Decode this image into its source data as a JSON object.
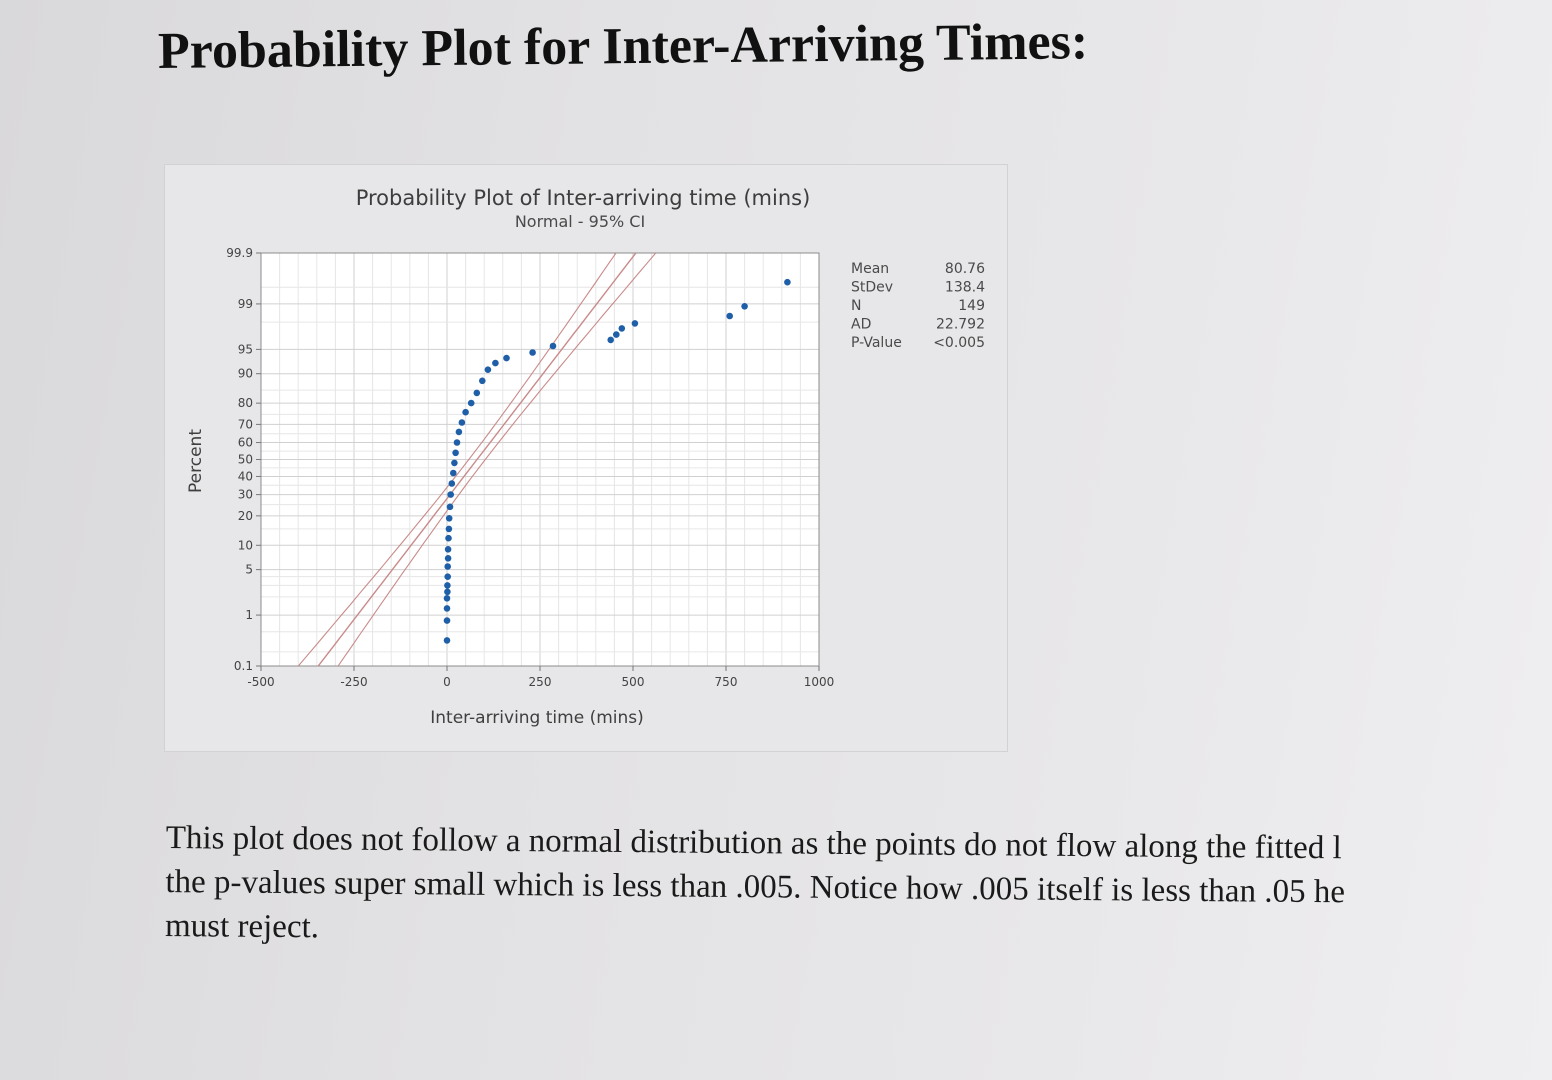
{
  "page": {
    "heading": "Probability Plot for Inter-Arriving Times:",
    "caption_lines": [
      "This plot does not follow a normal distribution as the points do not flow along the fitted l",
      "the p-values super small which is less than .005. Notice how .005 itself is less than .05 he",
      "must reject."
    ]
  },
  "stats": [
    {
      "label": "Mean",
      "value": "80.76"
    },
    {
      "label": "StDev",
      "value": "138.4"
    },
    {
      "label": "N",
      "value": "149"
    },
    {
      "label": "AD",
      "value": "22.792"
    },
    {
      "label": "P-Value",
      "value": "<0.005"
    }
  ],
  "colors": {
    "points": "#1f5fa8",
    "fit_line": "#c98a8a",
    "grid": "#dcdcdc"
  },
  "chart_data": {
    "type": "scatter",
    "title": "Probability Plot of Inter-arriving time (mins)",
    "subtitle": "Normal - 95% CI",
    "xlabel": "Inter-arriving time (mins)",
    "ylabel": "Percent",
    "xlim": [
      -500,
      1000
    ],
    "x_ticks": [
      -500,
      -250,
      0,
      250,
      500,
      750,
      1000
    ],
    "y_scale": "normal-probability",
    "y_ticks": [
      0.1,
      1,
      5,
      10,
      20,
      30,
      40,
      50,
      60,
      70,
      80,
      90,
      95,
      99,
      99.9
    ],
    "y_tick_labels": [
      "0.1",
      "1",
      "5",
      "10",
      "20",
      "30",
      "40",
      "50",
      "60",
      "70",
      "80",
      "90",
      "95",
      "99",
      "99.9"
    ],
    "fit": {
      "mean": 80.76,
      "stdev": 138.4,
      "ci_level": 95
    },
    "points": [
      {
        "x": 0,
        "y": 0.34
      },
      {
        "x": 0,
        "y": 0.8
      },
      {
        "x": 0,
        "y": 1.3
      },
      {
        "x": 0,
        "y": 1.9
      },
      {
        "x": 1,
        "y": 2.4
      },
      {
        "x": 1,
        "y": 3
      },
      {
        "x": 2,
        "y": 4
      },
      {
        "x": 2,
        "y": 5.5
      },
      {
        "x": 3,
        "y": 7
      },
      {
        "x": 3,
        "y": 9
      },
      {
        "x": 4,
        "y": 12
      },
      {
        "x": 5,
        "y": 15
      },
      {
        "x": 6,
        "y": 19
      },
      {
        "x": 8,
        "y": 24
      },
      {
        "x": 10,
        "y": 30
      },
      {
        "x": 13,
        "y": 36
      },
      {
        "x": 17,
        "y": 42
      },
      {
        "x": 20,
        "y": 48
      },
      {
        "x": 23,
        "y": 54
      },
      {
        "x": 27,
        "y": 60
      },
      {
        "x": 32,
        "y": 66
      },
      {
        "x": 40,
        "y": 71
      },
      {
        "x": 50,
        "y": 76
      },
      {
        "x": 65,
        "y": 80
      },
      {
        "x": 80,
        "y": 84
      },
      {
        "x": 95,
        "y": 88
      },
      {
        "x": 110,
        "y": 91
      },
      {
        "x": 130,
        "y": 92.5
      },
      {
        "x": 160,
        "y": 93.5
      },
      {
        "x": 230,
        "y": 94.5
      },
      {
        "x": 285,
        "y": 95.5
      },
      {
        "x": 440,
        "y": 96.3
      },
      {
        "x": 455,
        "y": 96.9
      },
      {
        "x": 470,
        "y": 97.5
      },
      {
        "x": 505,
        "y": 97.9
      },
      {
        "x": 760,
        "y": 98.4
      },
      {
        "x": 800,
        "y": 98.9
      },
      {
        "x": 915,
        "y": 99.6
      }
    ]
  }
}
